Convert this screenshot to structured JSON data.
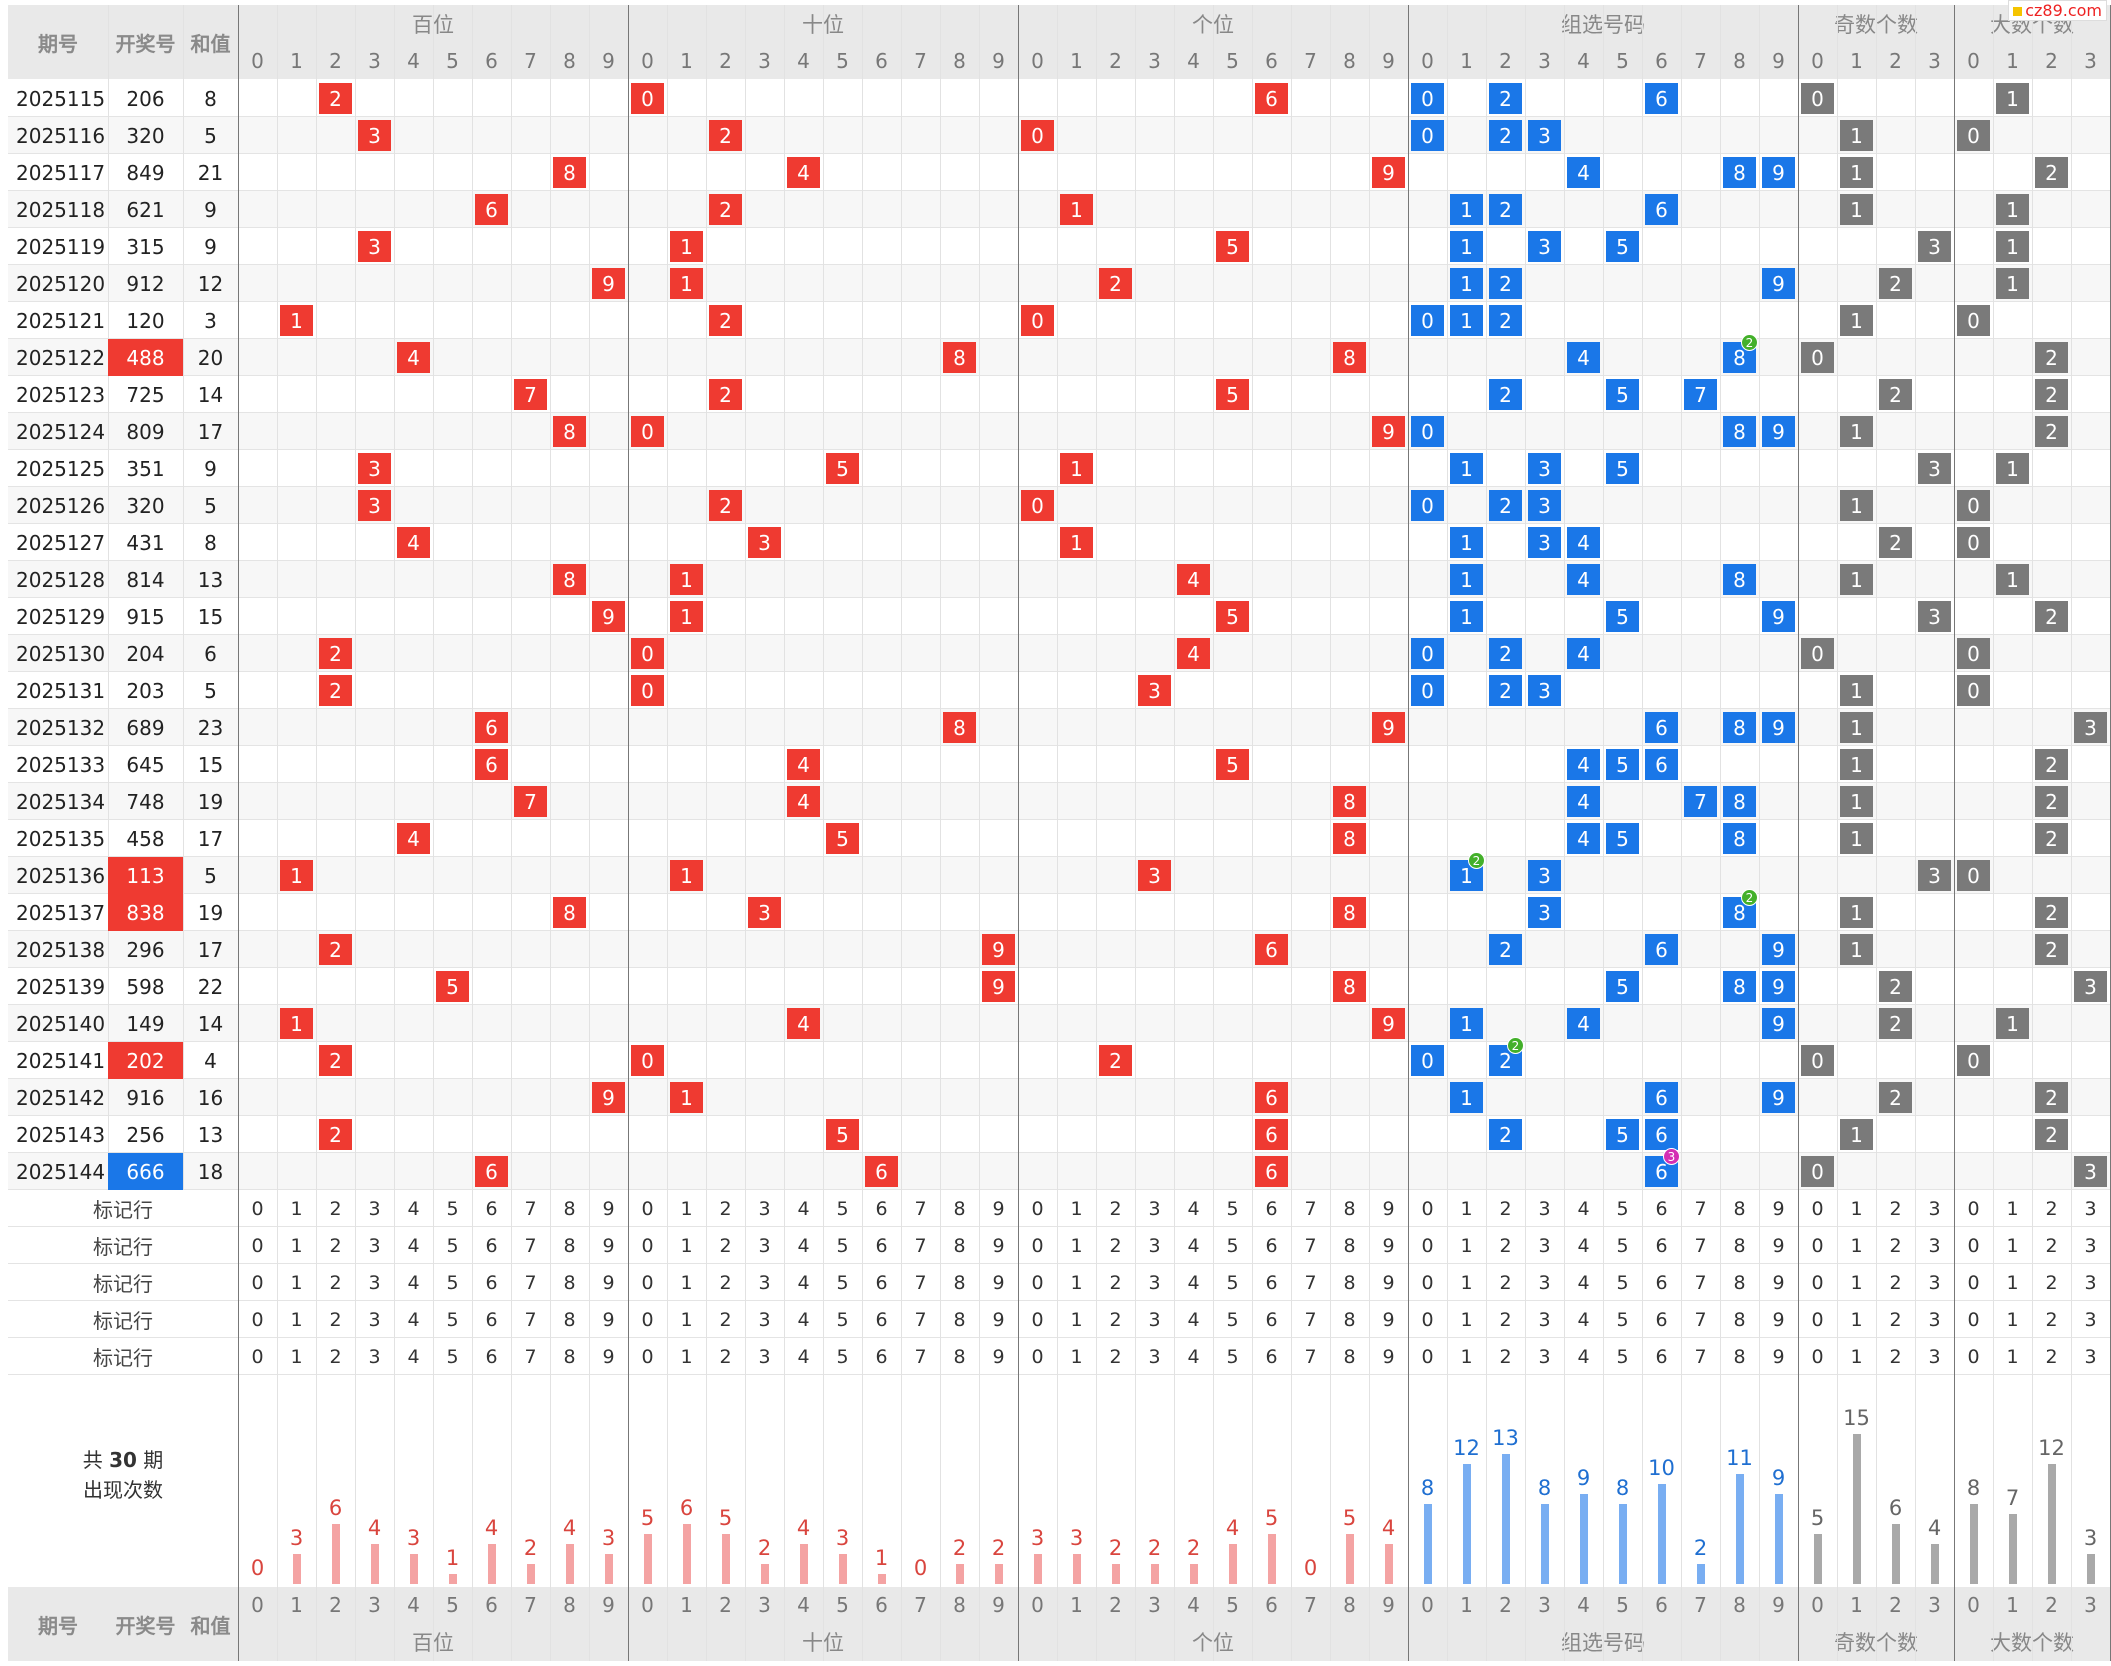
{
  "header": {
    "col_period": "期号",
    "col_draw": "开奖号",
    "col_sum": "和值",
    "groups": [
      "百位",
      "十位",
      "个位",
      "组选号码",
      "奇数个数",
      "大数个数"
    ]
  },
  "footer_groups": [
    "百位",
    "十位",
    "个位",
    "组选号码",
    "奇数个数",
    "大数个数"
  ],
  "watermark": "cz89.com",
  "rows": [
    {
      "period": "2025115",
      "draw": "206",
      "sum": "8",
      "type": ""
    },
    {
      "period": "2025116",
      "draw": "320",
      "sum": "5",
      "type": ""
    },
    {
      "period": "2025117",
      "draw": "849",
      "sum": "21",
      "type": ""
    },
    {
      "period": "2025118",
      "draw": "621",
      "sum": "9",
      "type": ""
    },
    {
      "period": "2025119",
      "draw": "315",
      "sum": "9",
      "type": ""
    },
    {
      "period": "2025120",
      "draw": "912",
      "sum": "12",
      "type": ""
    },
    {
      "period": "2025121",
      "draw": "120",
      "sum": "3",
      "type": ""
    },
    {
      "period": "2025122",
      "draw": "488",
      "sum": "20",
      "type": "pair"
    },
    {
      "period": "2025123",
      "draw": "725",
      "sum": "14",
      "type": ""
    },
    {
      "period": "2025124",
      "draw": "809",
      "sum": "17",
      "type": ""
    },
    {
      "period": "2025125",
      "draw": "351",
      "sum": "9",
      "type": ""
    },
    {
      "period": "2025126",
      "draw": "320",
      "sum": "5",
      "type": ""
    },
    {
      "period": "2025127",
      "draw": "431",
      "sum": "8",
      "type": ""
    },
    {
      "period": "2025128",
      "draw": "814",
      "sum": "13",
      "type": ""
    },
    {
      "period": "2025129",
      "draw": "915",
      "sum": "15",
      "type": ""
    },
    {
      "period": "2025130",
      "draw": "204",
      "sum": "6",
      "type": ""
    },
    {
      "period": "2025131",
      "draw": "203",
      "sum": "5",
      "type": ""
    },
    {
      "period": "2025132",
      "draw": "689",
      "sum": "23",
      "type": ""
    },
    {
      "period": "2025133",
      "draw": "645",
      "sum": "15",
      "type": ""
    },
    {
      "period": "2025134",
      "draw": "748",
      "sum": "19",
      "type": ""
    },
    {
      "period": "2025135",
      "draw": "458",
      "sum": "17",
      "type": ""
    },
    {
      "period": "2025136",
      "draw": "113",
      "sum": "5",
      "type": "pair"
    },
    {
      "period": "2025137",
      "draw": "838",
      "sum": "19",
      "type": "pair"
    },
    {
      "period": "2025138",
      "draw": "296",
      "sum": "17",
      "type": ""
    },
    {
      "period": "2025139",
      "draw": "598",
      "sum": "22",
      "type": ""
    },
    {
      "period": "2025140",
      "draw": "149",
      "sum": "14",
      "type": ""
    },
    {
      "period": "2025141",
      "draw": "202",
      "sum": "4",
      "type": "pair"
    },
    {
      "period": "2025142",
      "draw": "916",
      "sum": "16",
      "type": ""
    },
    {
      "period": "2025143",
      "draw": "256",
      "sum": "13",
      "type": ""
    },
    {
      "period": "2025144",
      "draw": "666",
      "sum": "18",
      "type": "triple"
    }
  ],
  "mark_row_label": "标记行",
  "mark_row_count": 5,
  "stats_label_line1_pre": "共",
  "stats_label_line1_num": "30",
  "stats_label_line1_post": "期",
  "stats_label_line2": "出现次数",
  "counts": {
    "hundreds": [
      0,
      3,
      6,
      4,
      3,
      1,
      4,
      2,
      4,
      3
    ],
    "tens": [
      5,
      6,
      5,
      2,
      4,
      3,
      1,
      0,
      2,
      2
    ],
    "units": [
      3,
      3,
      2,
      2,
      2,
      4,
      5,
      0,
      5,
      4
    ],
    "group": [
      8,
      12,
      13,
      8,
      9,
      8,
      10,
      2,
      11,
      9
    ],
    "odd": [
      5,
      15,
      6,
      4
    ],
    "big": [
      8,
      7,
      12,
      3
    ]
  },
  "colors": {
    "red": "#ef3a31",
    "blue": "#1a77e8",
    "gray": "#7a7a7a",
    "bar_red": "#f4a3a3",
    "bar_blue": "#79aef2",
    "bar_gray": "#a9a9a9",
    "label_red": "#d9453e",
    "label_blue": "#1f6fd1",
    "label_gray": "#666666",
    "badge_green": "#43b02a",
    "badge_magenta": "#d42fb3"
  }
}
